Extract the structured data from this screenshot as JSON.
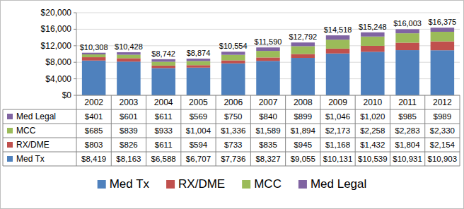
{
  "chart_data": {
    "type": "bar",
    "stacked": true,
    "grid": true,
    "legend": "bottom",
    "categories": [
      "2002",
      "2003",
      "2004",
      "2005",
      "2006",
      "2007",
      "2008",
      "2009",
      "2010",
      "2011",
      "2012"
    ],
    "ylim": [
      0,
      20000
    ],
    "yticks": [
      {
        "value": 0,
        "label": "$0"
      },
      {
        "value": 4000,
        "label": "$4,000"
      },
      {
        "value": 8000,
        "label": "$8,000"
      },
      {
        "value": 12000,
        "label": "$12,000"
      },
      {
        "value": 16000,
        "label": "$16,000"
      },
      {
        "value": 20000,
        "label": "$20,000"
      }
    ],
    "series": [
      {
        "name": "Med Tx",
        "color": "#4F81BD",
        "values": [
          8419,
          8163,
          6588,
          6707,
          7736,
          8327,
          9055,
          10131,
          10539,
          10931,
          10903
        ],
        "value_labels": [
          "$8,419",
          "$8,163",
          "$6,588",
          "$6,707",
          "$7,736",
          "$8,327",
          "$9,055",
          "$10,131",
          "$10,539",
          "$10,931",
          "$10,903"
        ]
      },
      {
        "name": "RX/DME",
        "color": "#C0504D",
        "values": [
          803,
          826,
          611,
          594,
          733,
          835,
          945,
          1168,
          1432,
          1804,
          2154
        ],
        "value_labels": [
          "$803",
          "$826",
          "$611",
          "$594",
          "$733",
          "$835",
          "$945",
          "$1,168",
          "$1,432",
          "$1,804",
          "$2,154"
        ]
      },
      {
        "name": "MCC",
        "color": "#9BBB59",
        "values": [
          685,
          839,
          933,
          1004,
          1336,
          1589,
          1894,
          2173,
          2258,
          2283,
          2330
        ],
        "value_labels": [
          "$685",
          "$839",
          "$933",
          "$1,004",
          "$1,336",
          "$1,589",
          "$1,894",
          "$2,173",
          "$2,258",
          "$2,283",
          "$2,330"
        ]
      },
      {
        "name": "Med Legal",
        "color": "#8064A2",
        "values": [
          401,
          601,
          611,
          569,
          750,
          840,
          899,
          1046,
          1020,
          985,
          989
        ],
        "value_labels": [
          "$401",
          "$601",
          "$611",
          "$569",
          "$750",
          "$840",
          "$899",
          "$1,046",
          "$1,020",
          "$985",
          "$989"
        ]
      }
    ],
    "totals": {
      "values": [
        10308,
        10428,
        8742,
        8874,
        10554,
        11590,
        12792,
        14518,
        15248,
        16003,
        16375
      ],
      "value_labels": [
        "$10,308",
        "$10,428",
        "$8,742",
        "$8,874",
        "$10,554",
        "$11,590",
        "$12,792",
        "$14,518",
        "$15,248",
        "$16,003",
        "$16,375"
      ]
    }
  }
}
